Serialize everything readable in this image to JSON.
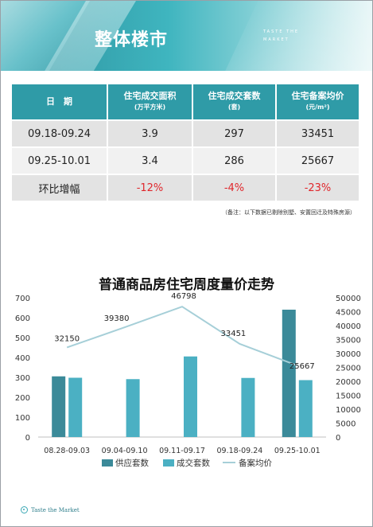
{
  "banner": {
    "title": "整体楼市",
    "tag": "TASTE THE MARKET"
  },
  "table": {
    "headers": [
      {
        "label": "日　期",
        "sub": ""
      },
      {
        "label": "住宅成交面积",
        "sub": "(万平方米)"
      },
      {
        "label": "住宅成交套数",
        "sub": "(套)"
      },
      {
        "label": "住宅备案均价",
        "sub": "(元/m²)"
      }
    ],
    "rows": [
      [
        "09.18-09.24",
        "3.9",
        "297",
        "33451"
      ],
      [
        "09.25-10.01",
        "3.4",
        "286",
        "25667"
      ],
      [
        "环比增幅",
        "-12%",
        "-4%",
        "-23%"
      ]
    ],
    "note": "（备注：以下数据已剔除别墅、安置回迁及特殊房源）"
  },
  "colors": {
    "header_bg": "#2f9ba7",
    "supply_bar": "#3b8a99",
    "deal_bar": "#4bb0c3",
    "price_line": "#a6cfd8",
    "negative": "#e0262b"
  },
  "chart_data": {
    "type": "bar",
    "title": "普通商品房住宅周度量价走势",
    "categories": [
      "08.28-09.03",
      "09.04-09.10",
      "09.11-09.17",
      "09.18-09.24",
      "09.25-10.01"
    ],
    "series": [
      {
        "name": "供应套数",
        "type": "bar",
        "axis": "left",
        "values": [
          305,
          0,
          0,
          0,
          640
        ]
      },
      {
        "name": "成交套数",
        "type": "bar",
        "axis": "left",
        "values": [
          298,
          291,
          405,
          297,
          286
        ]
      },
      {
        "name": "备案均价",
        "type": "line",
        "axis": "right",
        "values": [
          32150,
          39380,
          46798,
          33451,
          25667
        ]
      }
    ],
    "price_labels": [
      "32150",
      "39380",
      "46798",
      "33451",
      "25667"
    ],
    "left_ticks": [
      "0",
      "100",
      "200",
      "300",
      "400",
      "500",
      "600",
      "700"
    ],
    "right_ticks": [
      "0",
      "5000",
      "10000",
      "15000",
      "20000",
      "25000",
      "30000",
      "35000",
      "40000",
      "45000",
      "50000"
    ],
    "ylim_left": [
      0,
      700
    ],
    "ylim_right": [
      0,
      50000
    ],
    "legend_position": "bottom"
  },
  "footer": {
    "text": "Taste the Market"
  }
}
